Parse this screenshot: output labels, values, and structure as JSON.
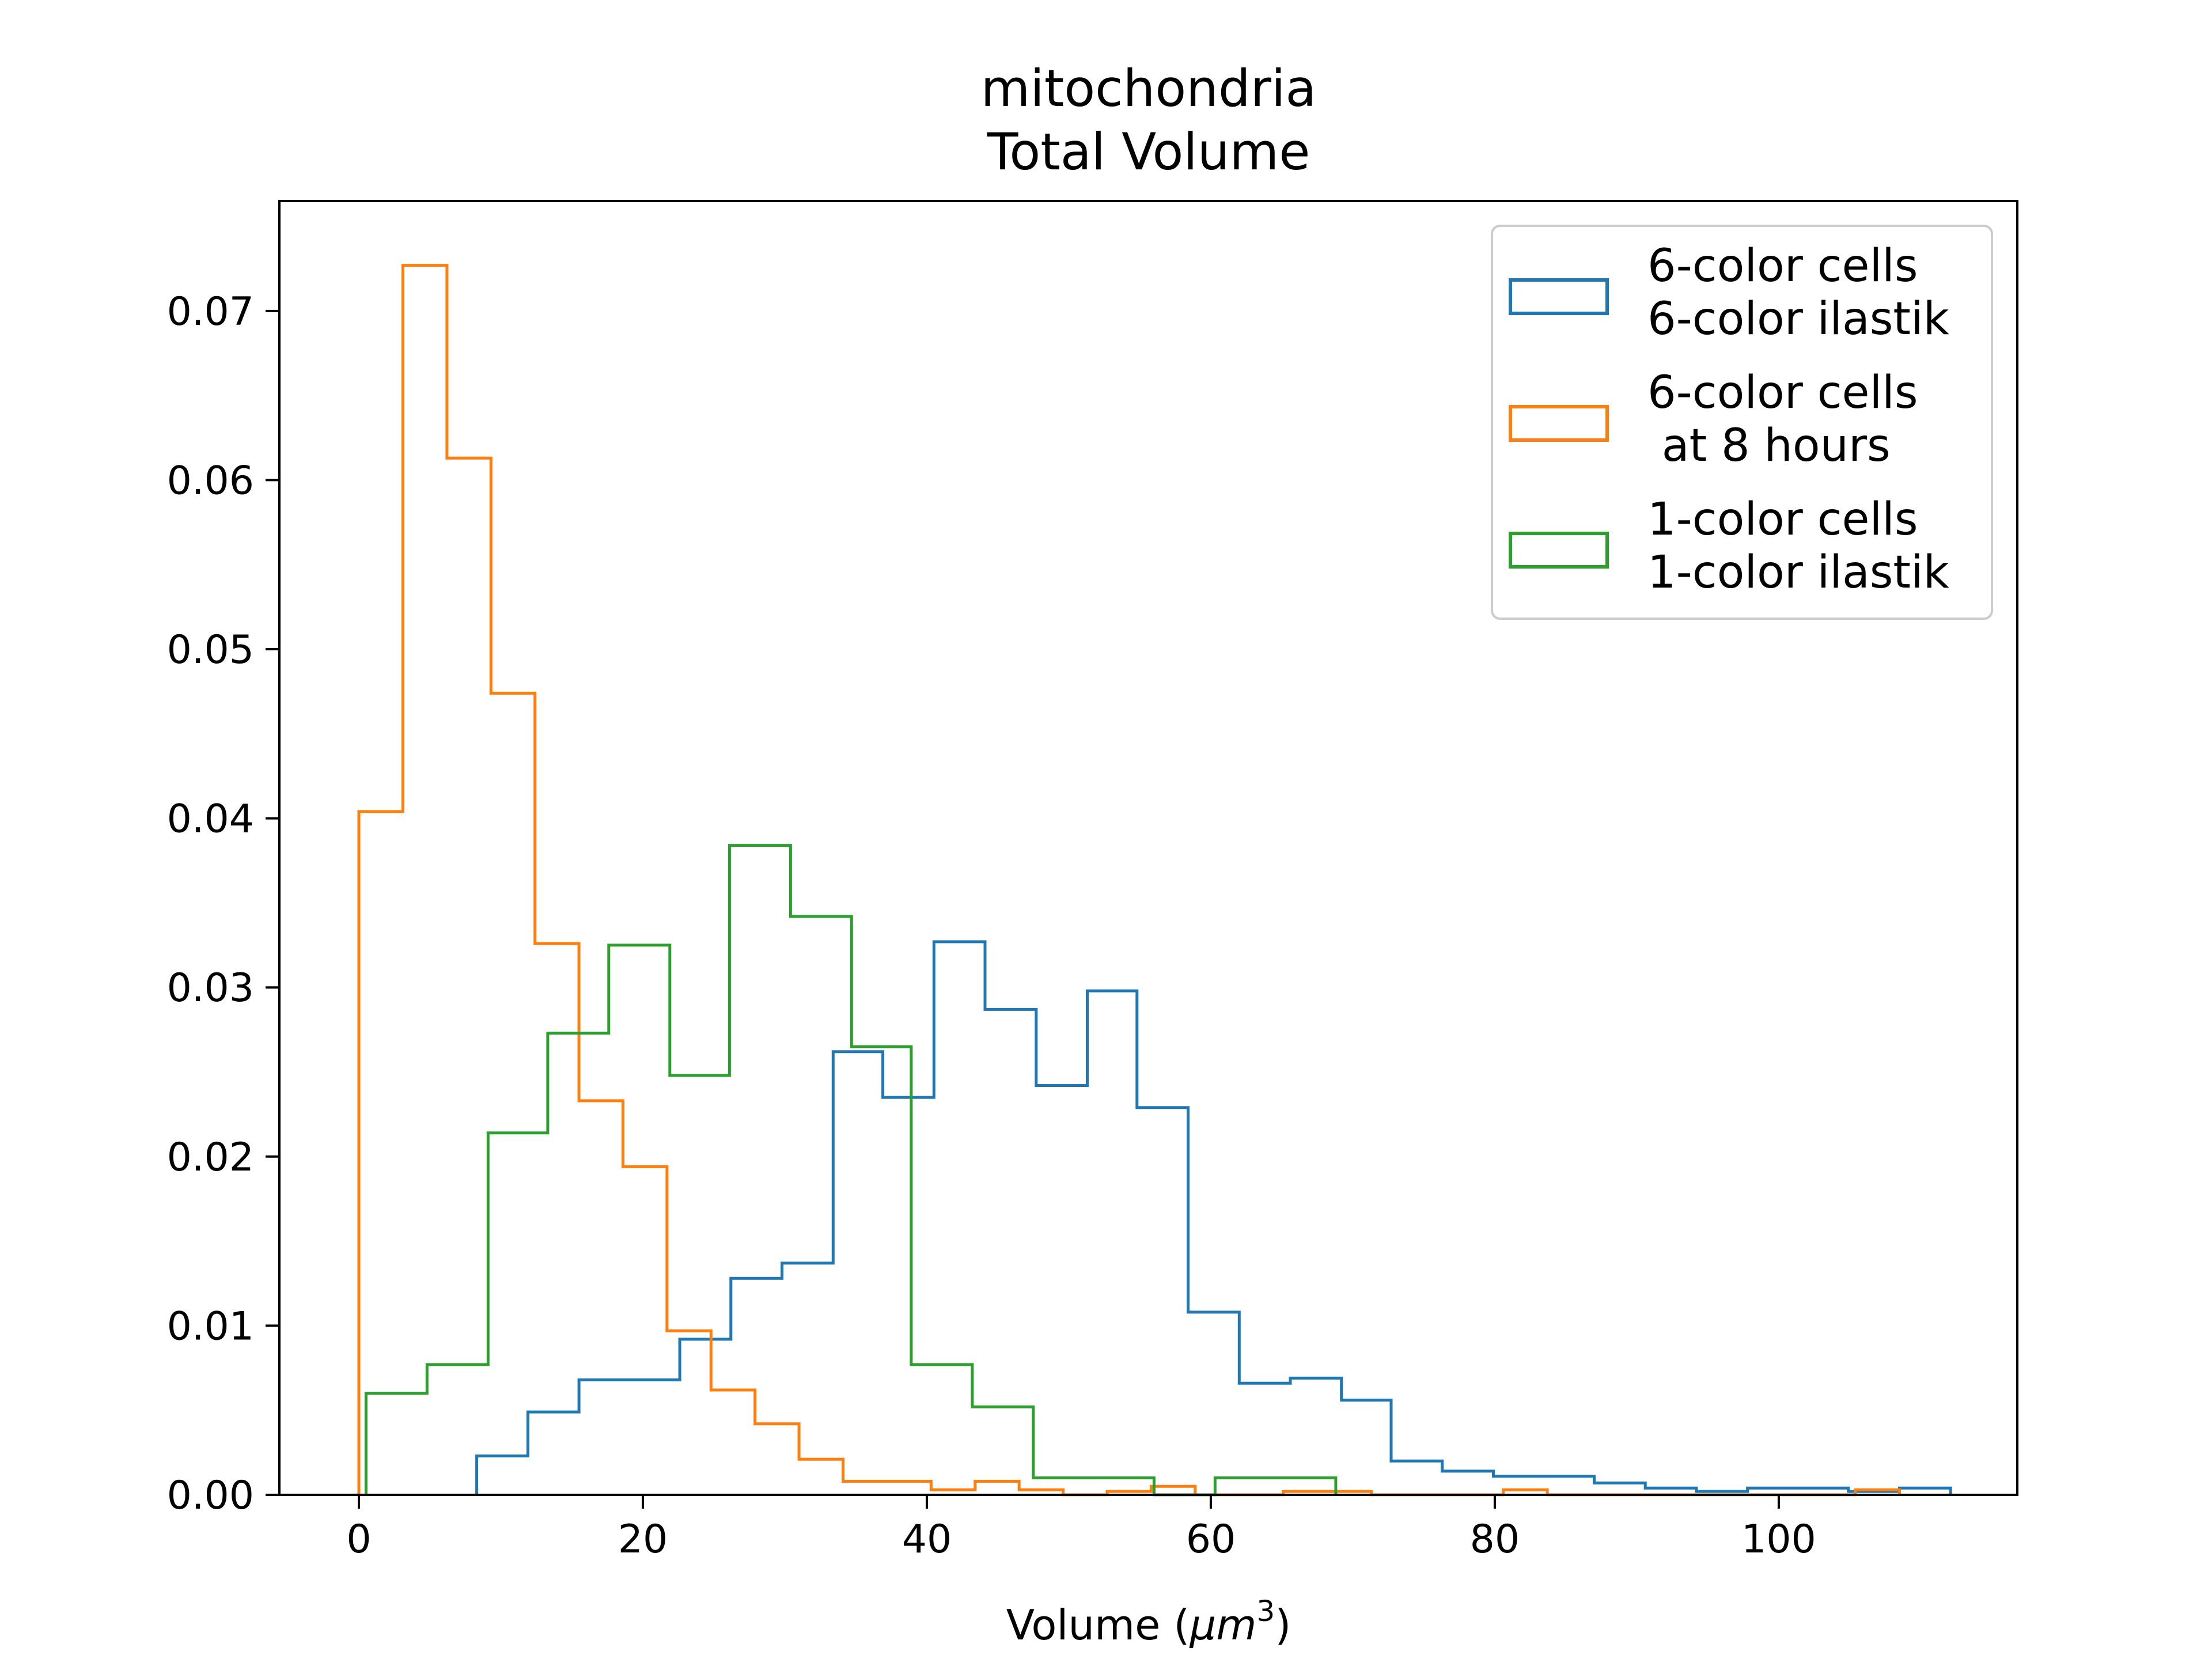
{
  "chart_data": {
    "type": "histogram",
    "title": "mitochondria\nTotal Volume",
    "title_lines": [
      "mitochondria",
      "Total Volume"
    ],
    "xlabel": "Volume (μm³)",
    "xlabel_main": "Volume (",
    "xlabel_unit_base": "μm",
    "xlabel_unit_exp": "3",
    "xlabel_close": ")",
    "ylabel": "",
    "xlim": [
      -5.6,
      116.8
    ],
    "ylim": [
      0,
      0.0765
    ],
    "xticks": [
      0,
      20,
      40,
      60,
      80,
      100
    ],
    "xtick_labels": [
      "0",
      "20",
      "40",
      "60",
      "80",
      "100"
    ],
    "yticks": [
      0,
      0.01,
      0.02,
      0.03,
      0.04,
      0.05,
      0.06,
      0.07
    ],
    "ytick_labels": [
      "0.00",
      "0.01",
      "0.02",
      "0.03",
      "0.04",
      "0.05",
      "0.06",
      "0.07"
    ],
    "grid": false,
    "legend_position": "top-right",
    "histtype": "step",
    "series": [
      {
        "name": "6-color cells\n6-color ilastik",
        "name_lines": [
          "6-color cells",
          "6-color ilastik"
        ],
        "color": "#1f77b4",
        "bin_edges": [
          8.3,
          11.9,
          15.5,
          19.1,
          22.6,
          26.2,
          29.8,
          33.4,
          36.9,
          40.5,
          44.1,
          47.7,
          51.3,
          54.8,
          58.4,
          62.0,
          65.6,
          69.2,
          72.7,
          76.3,
          79.9,
          83.5,
          87.0,
          90.6,
          94.2,
          97.8,
          101.4,
          104.9,
          108.5,
          112.1
        ],
        "values": [
          0.0023,
          0.0049,
          0.0068,
          0.0068,
          0.0092,
          0.0128,
          0.0137,
          0.0262,
          0.0235,
          0.0327,
          0.0287,
          0.0242,
          0.0298,
          0.0229,
          0.0108,
          0.0066,
          0.0069,
          0.0056,
          0.002,
          0.0014,
          0.0011,
          0.0011,
          0.0007,
          0.0004,
          0.0002,
          0.0004,
          0.0004,
          0.0002,
          0.0004
        ]
      },
      {
        "name": "6-color cells\n at 8 hours",
        "name_lines": [
          "6-color cells",
          " at 8 hours"
        ],
        "color": "#ff7f0e",
        "bin_edges": [
          0,
          3.1,
          6.2,
          9.3,
          12.4,
          15.5,
          18.6,
          21.7,
          24.8,
          27.9,
          31.0,
          34.1,
          37.2,
          40.3,
          43.4,
          46.5,
          49.6,
          52.7,
          55.8,
          58.9,
          62.0,
          65.1,
          68.2,
          71.3,
          74.4,
          77.5,
          80.6,
          83.7,
          86.8,
          89.9,
          93.0,
          96.1,
          99.2,
          102.3,
          105.4,
          108.5
        ],
        "values": [
          0.0404,
          0.0727,
          0.0613,
          0.0474,
          0.0326,
          0.0233,
          0.0194,
          0.0097,
          0.0062,
          0.0042,
          0.0021,
          0.0008,
          0.0008,
          0.0003,
          0.0008,
          0.0003,
          0.0,
          0.0002,
          0.0005,
          0.0,
          0.0,
          0.0002,
          0.0002,
          0.0,
          0.0,
          0.0,
          0.0003,
          0.0,
          0.0,
          0.0,
          0.0,
          0.0,
          0.0,
          0.0,
          0.0003
        ]
      },
      {
        "name": "1-color cells\n1-color ilastik",
        "name_lines": [
          "1-color cells",
          "1-color ilastik"
        ],
        "color": "#2ca02c",
        "bin_edges": [
          0.5,
          4.8,
          9.1,
          13.3,
          17.6,
          21.9,
          26.1,
          30.4,
          34.7,
          38.9,
          43.2,
          47.5,
          51.7,
          56.0,
          60.3,
          64.5,
          68.8
        ],
        "values": [
          0.006,
          0.0077,
          0.0214,
          0.0273,
          0.0325,
          0.0248,
          0.0384,
          0.0342,
          0.0265,
          0.0077,
          0.0052,
          0.001,
          0.001,
          0.0,
          0.001,
          0.001
        ]
      }
    ]
  }
}
